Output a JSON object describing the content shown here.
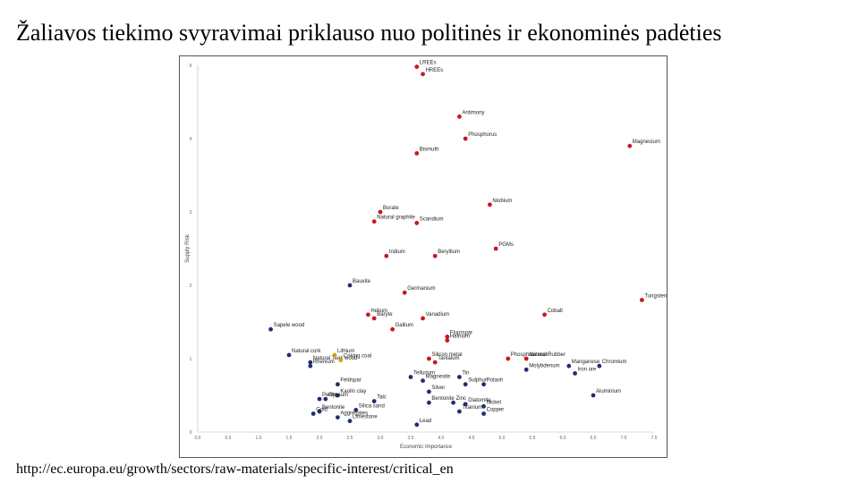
{
  "slide": {
    "title": "Žaliavos tiekimo svyravimai priklauso nuo politinės ir ekonominės padėties",
    "source": "http://ec.europa.eu/growth/sectors/raw-materials/specific-interest/critical_en"
  },
  "colors": {
    "critical": "#c8181e",
    "non_critical": "#1f2f6e",
    "border_case": "#d4a20a"
  },
  "chart_data": {
    "type": "scatter",
    "xlabel": "Economic Importance",
    "ylabel": "Supply Risk",
    "xlim": [
      0,
      7.5
    ],
    "ylim": [
      0,
      5
    ],
    "xticks": [
      "0.0",
      "0.5",
      "1.0",
      "1.5",
      "2.0",
      "2.5",
      "3.0",
      "3.5",
      "4.0",
      "4.5",
      "5.0",
      "5.5",
      "6.0",
      "6.5",
      "7.0",
      "7.5"
    ],
    "yticks": [
      "0",
      "1",
      "2",
      "3",
      "4",
      "5"
    ],
    "grid": false,
    "legend": "none",
    "series": [
      {
        "group": "critical",
        "points": [
          {
            "label": "LREEs",
            "x": 3.6,
            "y": 4.98
          },
          {
            "label": "HREEs",
            "x": 3.7,
            "y": 4.88
          },
          {
            "label": "Antimony",
            "x": 4.3,
            "y": 4.3
          },
          {
            "label": "Phosphorus",
            "x": 4.4,
            "y": 4.0
          },
          {
            "label": "Magnesium",
            "x": 7.1,
            "y": 3.9
          },
          {
            "label": "Bismuth",
            "x": 3.6,
            "y": 3.8
          },
          {
            "label": "Niobium",
            "x": 4.8,
            "y": 3.1
          },
          {
            "label": "Borate",
            "x": 3.0,
            "y": 3.0
          },
          {
            "label": "Scandium",
            "x": 3.6,
            "y": 2.85
          },
          {
            "label": "Natural graphite",
            "x": 2.9,
            "y": 2.87
          },
          {
            "label": "PGMs",
            "x": 4.9,
            "y": 2.5
          },
          {
            "label": "Indium",
            "x": 3.1,
            "y": 2.4
          },
          {
            "label": "Beryllium",
            "x": 3.9,
            "y": 2.4
          },
          {
            "label": "Germanium",
            "x": 3.4,
            "y": 1.9
          },
          {
            "label": "Tungsten",
            "x": 7.3,
            "y": 1.8
          },
          {
            "label": "Cobalt",
            "x": 5.7,
            "y": 1.6
          },
          {
            "label": "Helium",
            "x": 2.8,
            "y": 1.6
          },
          {
            "label": "Baryte",
            "x": 2.9,
            "y": 1.55
          },
          {
            "label": "Vanadium",
            "x": 3.7,
            "y": 1.55
          },
          {
            "label": "Gallium",
            "x": 3.2,
            "y": 1.4
          },
          {
            "label": "Fluorspar",
            "x": 4.1,
            "y": 1.3
          },
          {
            "label": "Hafnium",
            "x": 4.1,
            "y": 1.25
          },
          {
            "label": "Phosphate rock",
            "x": 5.1,
            "y": 1.0
          },
          {
            "label": "Natural Rubber",
            "x": 5.4,
            "y": 1.0
          },
          {
            "label": "Silicon metal",
            "x": 3.8,
            "y": 1.0
          },
          {
            "label": "Tantalum",
            "x": 3.9,
            "y": 0.95
          }
        ]
      },
      {
        "group": "non_critical",
        "points": [
          {
            "label": "Bauxite",
            "x": 2.5,
            "y": 2.0
          },
          {
            "label": "Sapele wood",
            "x": 1.2,
            "y": 1.4
          },
          {
            "label": "Natural cork",
            "x": 1.5,
            "y": 1.05
          },
          {
            "label": "Rhenium",
            "x": 1.85,
            "y": 0.9
          },
          {
            "label": "Natural Teak wood",
            "x": 1.85,
            "y": 0.95
          },
          {
            "label": "Molybdenum",
            "x": 5.4,
            "y": 0.85
          },
          {
            "label": "Manganese",
            "x": 6.1,
            "y": 0.9
          },
          {
            "label": "Chromium",
            "x": 6.6,
            "y": 0.9
          },
          {
            "label": "Iron ore",
            "x": 6.2,
            "y": 0.8
          },
          {
            "label": "Tellurium",
            "x": 3.5,
            "y": 0.75
          },
          {
            "label": "Tin",
            "x": 4.3,
            "y": 0.75
          },
          {
            "label": "Magnesite",
            "x": 3.7,
            "y": 0.7
          },
          {
            "label": "Feldspar",
            "x": 2.3,
            "y": 0.65
          },
          {
            "label": "Sulphur",
            "x": 4.4,
            "y": 0.65
          },
          {
            "label": "Potash",
            "x": 4.7,
            "y": 0.65
          },
          {
            "label": "Silver",
            "x": 3.8,
            "y": 0.55
          },
          {
            "label": "Kaolin clay",
            "x": 2.3,
            "y": 0.5
          },
          {
            "label": "Aluminium",
            "x": 6.5,
            "y": 0.5
          },
          {
            "label": "Perlite",
            "x": 2.0,
            "y": 0.45
          },
          {
            "label": "Gypsum",
            "x": 2.1,
            "y": 0.45
          },
          {
            "label": "Talc",
            "x": 2.9,
            "y": 0.42
          },
          {
            "label": "Bentonite",
            "x": 3.8,
            "y": 0.4
          },
          {
            "label": "Zinc",
            "x": 4.2,
            "y": 0.4
          },
          {
            "label": "Diatomite",
            "x": 4.4,
            "y": 0.38
          },
          {
            "label": "Nickel",
            "x": 4.7,
            "y": 0.35
          },
          {
            "label": "Silica sand",
            "x": 2.6,
            "y": 0.3
          },
          {
            "label": "Bentonite",
            "x": 2.0,
            "y": 0.28
          },
          {
            "label": "Titanium",
            "x": 4.3,
            "y": 0.28
          },
          {
            "label": "Copper",
            "x": 4.7,
            "y": 0.25
          },
          {
            "label": "Gold",
            "x": 1.9,
            "y": 0.25
          },
          {
            "label": "Aggregates",
            "x": 2.3,
            "y": 0.2
          },
          {
            "label": "Limestone",
            "x": 2.5,
            "y": 0.15
          },
          {
            "label": "Lead",
            "x": 3.6,
            "y": 0.1
          }
        ]
      },
      {
        "group": "border_case",
        "points": [
          {
            "label": "Lithium",
            "x": 2.25,
            "y": 1.05
          },
          {
            "label": "Coking coal",
            "x": 2.35,
            "y": 0.98
          }
        ]
      }
    ]
  }
}
